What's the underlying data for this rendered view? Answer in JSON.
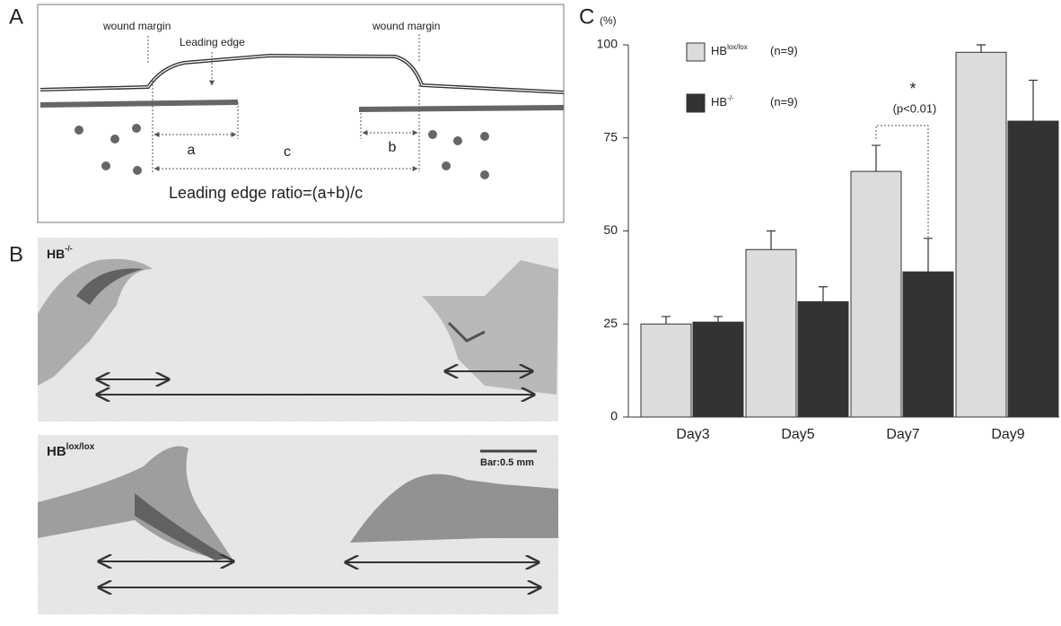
{
  "panel_a": {
    "label": "A",
    "wound_margin_left": "wound margin",
    "leading_edge": "Leading edge",
    "wound_margin_right": "wound margin",
    "a": "a",
    "c": "c",
    "b": "b",
    "formula": "Leading edge ratio=(a+b)/c"
  },
  "panel_b": {
    "label": "B",
    "top": {
      "name": "HB",
      "sup": "-/-"
    },
    "bottom": {
      "name": "HB",
      "sup": "lox/lox"
    },
    "scale_bar": "Bar:0.5 mm"
  },
  "chart_data": {
    "type": "bar",
    "panel_label": "C",
    "y_unit": "(%)",
    "categories": [
      "Day3",
      "Day5",
      "Day7",
      "Day9"
    ],
    "series": [
      {
        "name": "HB",
        "name_sup": "lox/lox",
        "n": "(n=9)",
        "color": "#dcdcdc",
        "values": [
          25,
          45,
          66,
          98
        ],
        "errors": [
          2,
          5,
          7,
          2
        ]
      },
      {
        "name": "HB",
        "name_sup": "-/-",
        "n": "(n=9)",
        "color": "#333333",
        "values": [
          25.5,
          31,
          39,
          79.5
        ],
        "errors": [
          1.5,
          4,
          9,
          11
        ]
      }
    ],
    "ylim": [
      0,
      100
    ],
    "yticks": [
      0,
      25,
      50,
      75,
      100
    ],
    "annotations": {
      "significance": "*",
      "p_value": "(p<0.01)"
    }
  }
}
